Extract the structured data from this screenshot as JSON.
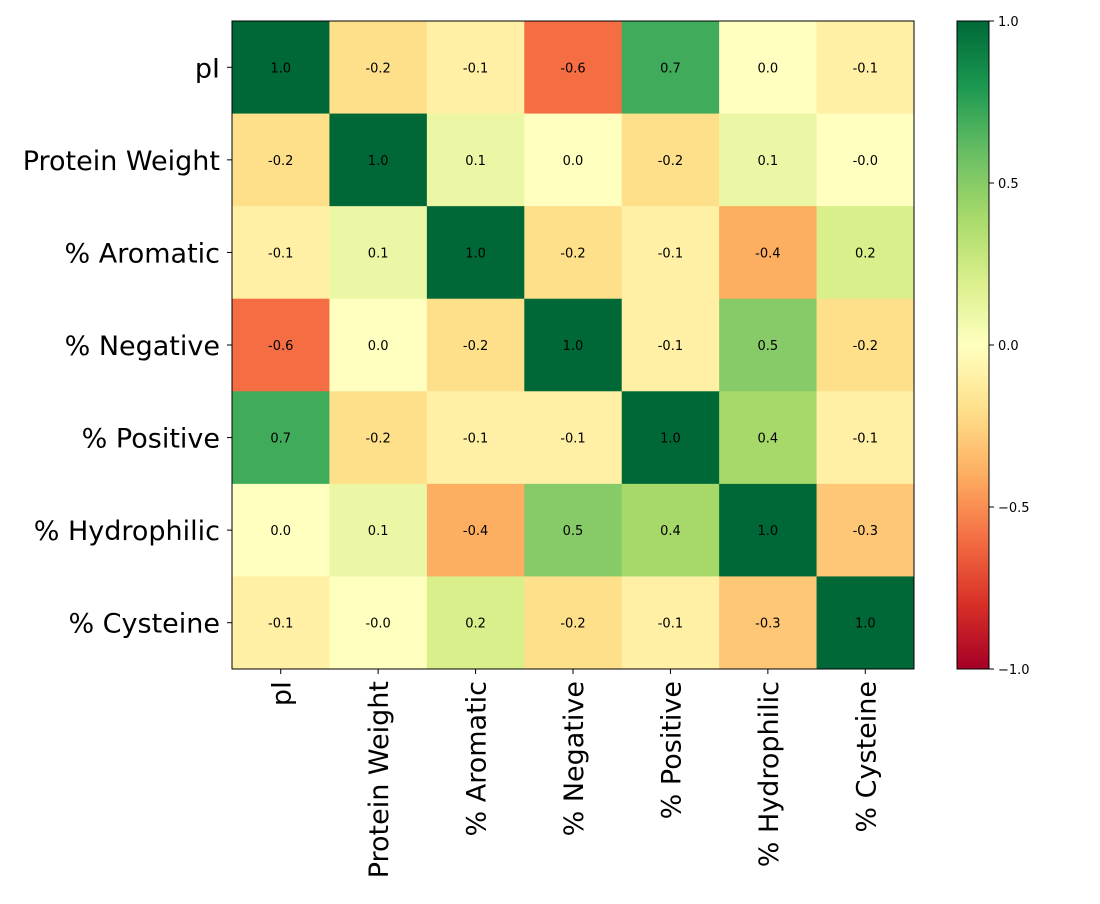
{
  "chart_data": {
    "type": "heatmap",
    "title": "",
    "xlabel": "",
    "ylabel": "",
    "rows": [
      "pI",
      "Protein Weight",
      "% Aromatic",
      "% Negative",
      "% Positive",
      "% Hydrophilic",
      "% Cysteine"
    ],
    "columns": [
      "pI",
      "Protein Weight",
      "% Aromatic",
      "% Negative",
      "% Positive",
      "% Hydrophilic",
      "% Cysteine"
    ],
    "values": [
      [
        1.0,
        -0.2,
        -0.1,
        -0.6,
        0.7,
        0.0,
        -0.1
      ],
      [
        -0.2,
        1.0,
        0.1,
        0.0,
        -0.2,
        0.1,
        -0.0
      ],
      [
        -0.1,
        0.1,
        1.0,
        -0.2,
        -0.1,
        -0.4,
        0.2
      ],
      [
        -0.6,
        0.0,
        -0.2,
        1.0,
        -0.1,
        0.5,
        -0.2
      ],
      [
        0.7,
        -0.2,
        -0.1,
        -0.1,
        1.0,
        0.4,
        -0.1
      ],
      [
        0.0,
        0.1,
        -0.4,
        0.5,
        0.4,
        1.0,
        -0.3
      ],
      [
        -0.1,
        -0.0,
        0.2,
        -0.2,
        -0.1,
        -0.3,
        1.0
      ]
    ],
    "cell_labels": [
      [
        "1.0",
        "-0.2",
        "-0.1",
        "-0.6",
        "0.7",
        "0.0",
        "-0.1"
      ],
      [
        "-0.2",
        "1.0",
        "0.1",
        "0.0",
        "-0.2",
        "0.1",
        "-0.0"
      ],
      [
        "-0.1",
        "0.1",
        "1.0",
        "-0.2",
        "-0.1",
        "-0.4",
        "0.2"
      ],
      [
        "-0.6",
        "0.0",
        "-0.2",
        "1.0",
        "-0.1",
        "0.5",
        "-0.2"
      ],
      [
        "0.7",
        "-0.2",
        "-0.1",
        "-0.1",
        "1.0",
        "0.4",
        "-0.1"
      ],
      [
        "0.0",
        "0.1",
        "-0.4",
        "0.5",
        "0.4",
        "1.0",
        "-0.3"
      ],
      [
        "-0.1",
        "-0.0",
        "0.2",
        "-0.2",
        "-0.1",
        "-0.3",
        "1.0"
      ]
    ],
    "colormap": "RdYlGn",
    "vmin": -1.0,
    "vmax": 1.0,
    "colorbar": {
      "ticks": [
        1.0,
        0.5,
        0.0,
        -0.5,
        -1.0
      ],
      "tick_labels": [
        "1.0",
        "0.5",
        "0.0",
        "−0.5",
        "−1.0"
      ]
    },
    "grid": false,
    "legend": "colorbar-right"
  }
}
